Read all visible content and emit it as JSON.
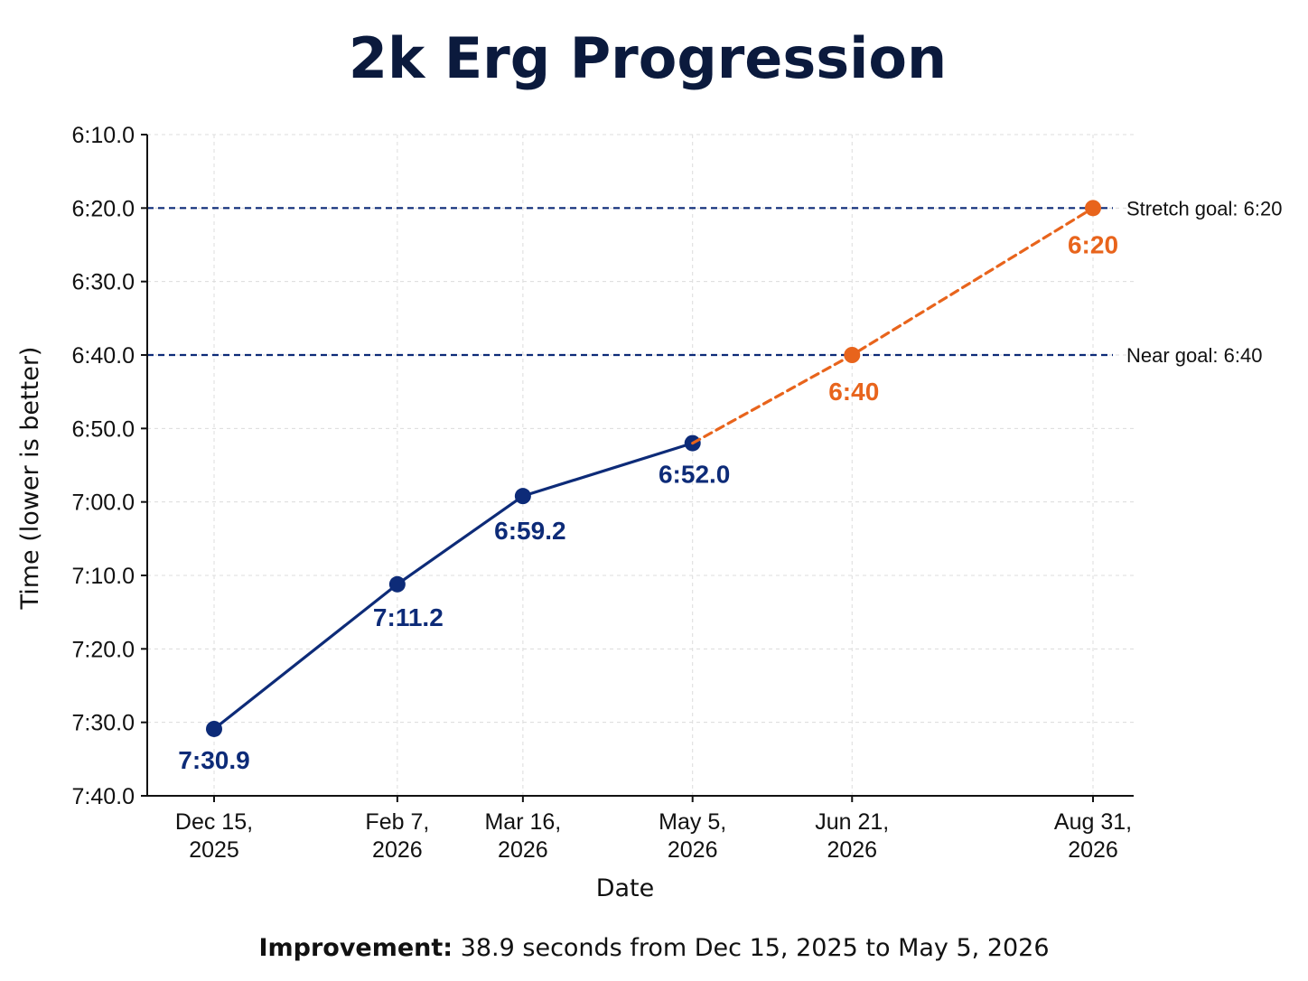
{
  "chart_data": {
    "type": "line",
    "title": "2k Erg Progression",
    "xlabel": "Date",
    "ylabel": "Time (lower is better)",
    "x_ticks": [
      {
        "date": "2025-12-15",
        "line1": "Dec 15,",
        "line2": "2025"
      },
      {
        "date": "2026-02-07",
        "line1": "Feb 7,",
        "line2": "2026"
      },
      {
        "date": "2026-03-16",
        "line1": "Mar 16,",
        "line2": "2026"
      },
      {
        "date": "2026-05-05",
        "line1": "May 5,",
        "line2": "2026"
      },
      {
        "date": "2026-06-21",
        "line1": "Jun 21,",
        "line2": "2026"
      },
      {
        "date": "2026-08-31",
        "line1": "Aug 31,",
        "line2": "2026"
      }
    ],
    "y_ticks": [
      "6:10.0",
      "6:20.0",
      "6:30.0",
      "6:40.0",
      "6:50.0",
      "7:00.0",
      "7:10.0",
      "7:20.0",
      "7:30.0",
      "7:40.0"
    ],
    "ylim": [
      "6:10.0",
      "7:40.0"
    ],
    "y_inverted": true,
    "grid": true,
    "series": [
      {
        "style": "solid",
        "color": "#0d2b78",
        "points": [
          {
            "date": "2025-12-15",
            "time": "7:30.9",
            "label": "7:30.9"
          },
          {
            "date": "2026-02-07",
            "time": "7:11.2",
            "label": "7:11.2"
          },
          {
            "date": "2026-03-16",
            "time": "6:59.2",
            "label": "6:59.2"
          },
          {
            "date": "2026-05-05",
            "time": "6:52.0",
            "label": "6:52.0"
          }
        ]
      },
      {
        "style": "dashed",
        "color": "#e8641c",
        "connect_from": {
          "date": "2026-05-05",
          "time": "6:52.0"
        },
        "points": [
          {
            "date": "2026-06-21",
            "time": "6:40.0",
            "label": "6:40"
          },
          {
            "date": "2026-08-31",
            "time": "6:20.0",
            "label": "6:20"
          }
        ]
      }
    ],
    "reference_lines": [
      {
        "time": "6:20.0",
        "label": "Stretch goal: 6:20",
        "color": "#0d2b78",
        "style": "dashed"
      },
      {
        "time": "6:40.0",
        "label": "Near goal: 6:40",
        "color": "#0d2b78",
        "style": "dashed"
      }
    ]
  },
  "footnote": {
    "bold": "Improvement:",
    "text": " 38.9 seconds from Dec 15, 2025 to May 5, 2026"
  }
}
